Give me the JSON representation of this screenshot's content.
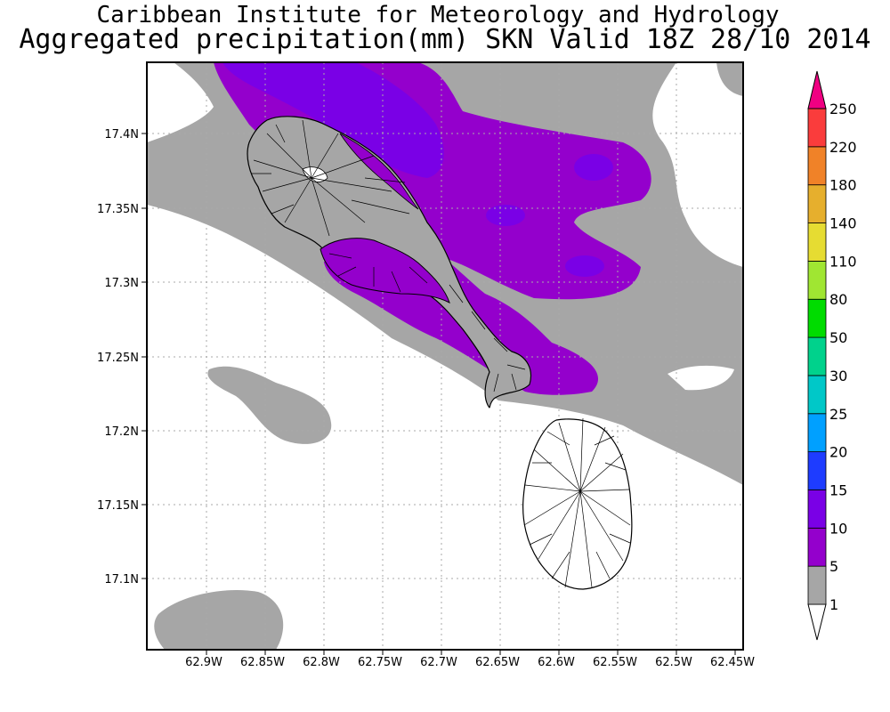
{
  "title": {
    "line1": "Caribbean Institute for Meteorology and Hydrology",
    "line2": "Aggregated precipitation(mm) SKN Valid 18Z 28/10 2014"
  },
  "map": {
    "x_ticks": [
      "62.9W",
      "62.85W",
      "62.8W",
      "62.75W",
      "62.7W",
      "62.65W",
      "62.6W",
      "62.55W",
      "62.5W",
      "62.45W"
    ],
    "y_ticks": [
      "17.4N",
      "17.35N",
      "17.3N",
      "17.25N",
      "17.2N",
      "17.15N",
      "17.1N"
    ],
    "islands": [
      "St. Kitts",
      "Nevis"
    ]
  },
  "legend": {
    "levels": [
      "1",
      "5",
      "10",
      "15",
      "20",
      "25",
      "30",
      "50",
      "80",
      "110",
      "140",
      "180",
      "220",
      "250"
    ],
    "colors": [
      "#ffffff",
      "#a6a6a6",
      "#9400cc",
      "#7a00e6",
      "#1e3cff",
      "#00a0ff",
      "#00c8c8",
      "#00d28c",
      "#00dc00",
      "#a0e632",
      "#e6dc32",
      "#e6af2d",
      "#f08228",
      "#fa3c3c",
      "#f00082"
    ]
  }
}
